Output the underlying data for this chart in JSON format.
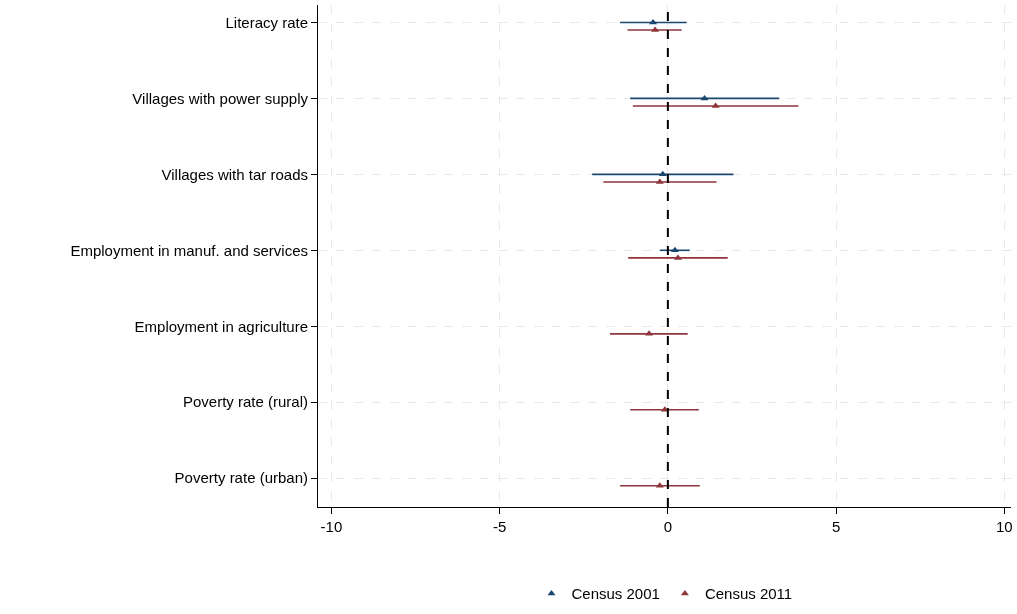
{
  "chart_data": {
    "type": "scatter",
    "orientation": "horizontal",
    "categories": [
      "Literacy rate",
      "Villages with power supply",
      "Villages with tar roads",
      "Employment in manuf. and services",
      "Employment in agriculture",
      "Poverty rate (rural)",
      "Poverty rate (urban)"
    ],
    "series": [
      {
        "name": "Census 2001",
        "color": "#1a476f",
        "values": [
          -0.44,
          1.09,
          -0.15,
          0.21,
          null,
          null,
          null
        ],
        "errors": [
          [
            -1.42,
            0.56
          ],
          [
            -1.12,
            3.31
          ],
          [
            -2.25,
            1.95
          ],
          [
            -0.24,
            0.65
          ],
          null,
          null,
          null
        ]
      },
      {
        "name": "Census 2011",
        "color": "#90353b",
        "values": [
          -0.38,
          1.42,
          -0.24,
          0.3,
          -0.56,
          -0.09,
          -0.24
        ],
        "errors": [
          [
            -1.2,
            0.41
          ],
          [
            -1.04,
            3.88
          ],
          [
            -1.92,
            1.45
          ],
          [
            -1.18,
            1.78
          ],
          [
            -1.72,
            0.59
          ],
          [
            -1.12,
            0.92
          ],
          [
            -1.42,
            0.95
          ]
        ]
      }
    ],
    "xlim": [
      -10.4,
      10.2
    ],
    "xticks": [
      -10,
      -5,
      0,
      5,
      10
    ],
    "ref_lines": [
      {
        "axis": "x",
        "value": 0,
        "color": "#000000",
        "line_style": "dashed"
      }
    ],
    "grid": true,
    "legend": "bottom",
    "marker": "triangle"
  }
}
